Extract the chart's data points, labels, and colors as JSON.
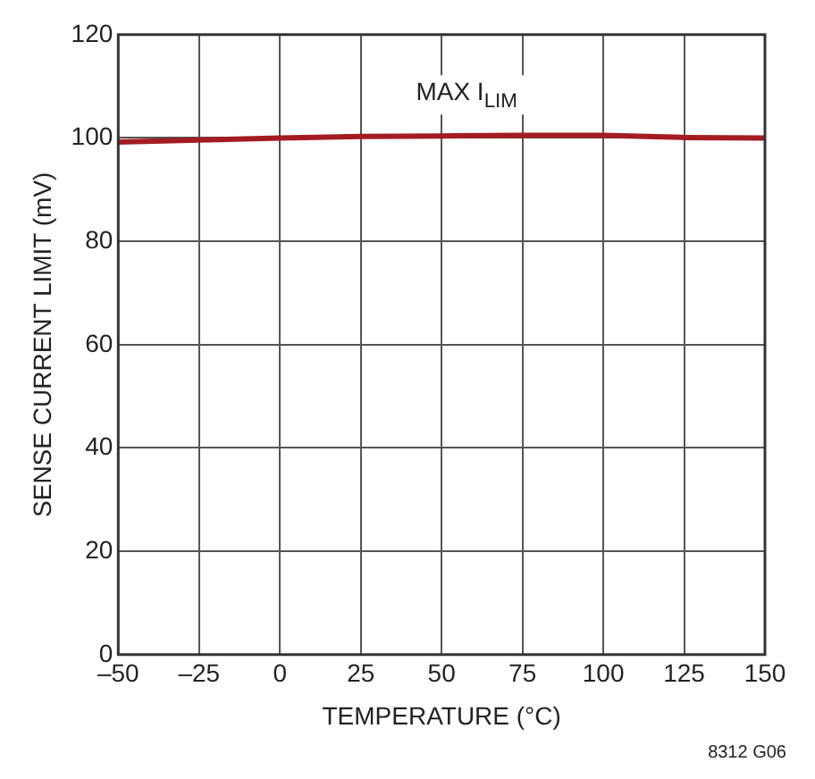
{
  "chart_data": {
    "type": "line",
    "xlabel": "TEMPERATURE (°C)",
    "ylabel": "SENSE CURRENT LIMIT (mV)",
    "x": [
      -50,
      -25,
      0,
      25,
      50,
      75,
      100,
      125,
      150
    ],
    "series": [
      {
        "name": "MAX I$_{LIM}$",
        "color": "#a31c22",
        "values": [
          99.2,
          99.6,
          100,
          100.3,
          100.4,
          100.5,
          100.5,
          100.1,
          100
        ]
      }
    ],
    "xlim": [
      -50,
      150
    ],
    "ylim": [
      0,
      120
    ],
    "xticks": [
      {
        "value": -50,
        "label": "–50"
      },
      {
        "value": -25,
        "label": "–25"
      },
      0,
      25,
      50,
      75,
      100,
      125,
      150
    ],
    "yticks": [
      0,
      20,
      40,
      60,
      80,
      100,
      120
    ],
    "grid": true,
    "legend": false,
    "marker": "none",
    "line_style": "solid",
    "annotations": [
      "8312 G06"
    ]
  }
}
